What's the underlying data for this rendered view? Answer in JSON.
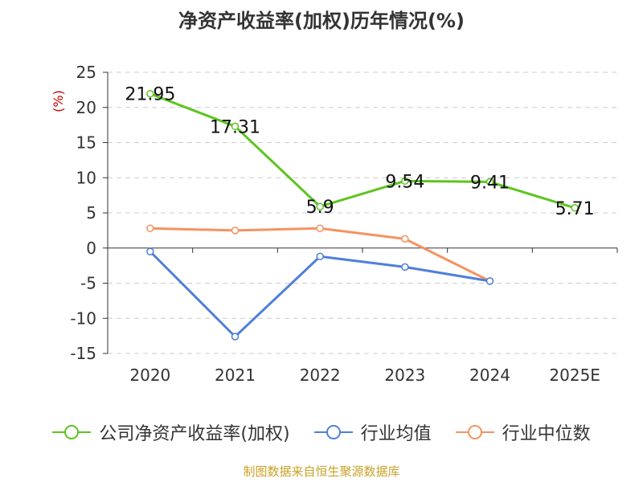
{
  "chart_data": {
    "type": "line",
    "title": "净资产收益率(加权)历年情况(%)",
    "ylabel": "(%)",
    "xlabel": "",
    "categories": [
      "2020",
      "2021",
      "2022",
      "2023",
      "2024",
      "2025E"
    ],
    "ylim": [
      -15,
      25
    ],
    "yticks": [
      25,
      20,
      15,
      10,
      5,
      0,
      -5,
      -10,
      -15
    ],
    "grid": true,
    "legend_position": "bottom",
    "series": [
      {
        "name": "公司净资产收益率(加权)",
        "color": "#5dc41f",
        "values": [
          21.95,
          17.31,
          5.9,
          9.54,
          9.41,
          5.71
        ],
        "labels": [
          "21.95",
          "17.31",
          "5.9",
          "9.54",
          "9.41",
          "5.71"
        ]
      },
      {
        "name": "行业均值",
        "color": "#4f7fdc",
        "values": [
          -0.5,
          -12.6,
          -1.2,
          -2.7,
          -4.7,
          null
        ]
      },
      {
        "name": "行业中位数",
        "color": "#f59361",
        "values": [
          2.8,
          2.5,
          2.8,
          1.3,
          -4.7,
          null
        ]
      }
    ]
  },
  "source": "制图数据来自恒生聚源数据库"
}
